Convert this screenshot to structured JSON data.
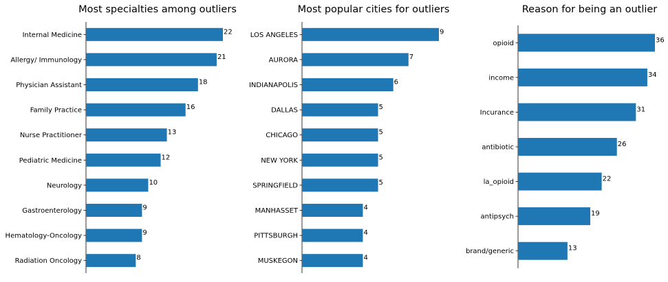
{
  "chart_data": [
    {
      "type": "bar",
      "orientation": "horizontal",
      "title": "Most specialties among outliers",
      "categories": [
        "Internal Medicine",
        "Allergy/ Immunology",
        "Physician Assistant",
        "Family Practice",
        "Nurse Practitioner",
        "Pediatric Medicine",
        "Neurology",
        "Gastroenterology",
        "Hematology-Oncology",
        "Radiation Oncology"
      ],
      "values": [
        22,
        21,
        18,
        16,
        13,
        12,
        10,
        9,
        9,
        8
      ],
      "xlim": [
        0,
        22
      ],
      "grid": false,
      "color": "#1f77b4"
    },
    {
      "type": "bar",
      "orientation": "horizontal",
      "title": "Most popular cities for outliers",
      "categories": [
        "LOS ANGELES",
        "AURORA",
        "INDIANAPOLIS",
        "DALLAS",
        "CHICAGO",
        "NEW YORK",
        "SPRINGFIELD",
        "MANHASSET",
        "PITTSBURGH",
        "MUSKEGON"
      ],
      "values": [
        9,
        7,
        6,
        5,
        5,
        5,
        5,
        4,
        4,
        4
      ],
      "xlim": [
        0,
        9
      ],
      "grid": false,
      "color": "#1f77b4"
    },
    {
      "type": "bar",
      "orientation": "horizontal",
      "title": "Reason for being an outlier",
      "categories": [
        "opioid",
        "income",
        "Incurance",
        "antibiotic",
        "la_opioid",
        "antipsych",
        "brand/generic"
      ],
      "values": [
        36,
        34,
        31,
        26,
        22,
        19,
        13
      ],
      "xlim": [
        0,
        36
      ],
      "grid": false,
      "color": "#1f77b4"
    }
  ]
}
